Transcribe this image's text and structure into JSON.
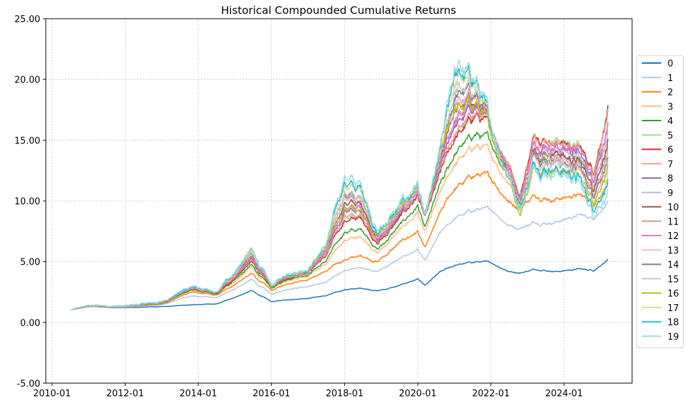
{
  "chart_data": {
    "type": "line",
    "title": "Historical Compounded Cumulative Returns",
    "xlabel": "",
    "ylabel": "",
    "xlim": [
      2009.83,
      2025.86
    ],
    "ylim": [
      -5,
      25
    ],
    "grid": true,
    "legend_placement": "right",
    "y_ticks": [
      -5,
      0,
      5,
      10,
      15,
      20,
      25
    ],
    "y_tick_labels": [
      "-5.00",
      "0.00",
      "5.00",
      "10.00",
      "15.00",
      "20.00",
      "25.00"
    ],
    "x_ticks": [
      2010.0,
      2012.0,
      2014.0,
      2016.0,
      2018.0,
      2020.0,
      2022.0,
      2024.0
    ],
    "x_tick_labels": [
      "2010-01",
      "2012-01",
      "2014-01",
      "2016-01",
      "2018-01",
      "2020-01",
      "2022-01",
      "2024-01"
    ],
    "x": [
      2010.5,
      2011.0,
      2012.0,
      2013.0,
      2013.8,
      2014.5,
      2015.45,
      2016.0,
      2016.5,
      2017.0,
      2017.5,
      2018.0,
      2018.5,
      2018.9,
      2019.5,
      2020.0,
      2020.2,
      2020.6,
      2021.0,
      2021.6,
      2022.0,
      2022.5,
      2022.8,
      2023.2,
      2023.8,
      2024.4,
      2024.8,
      2025.2
    ],
    "series": [
      {
        "name": "0",
        "color": "#1f77b4",
        "values": [
          1.0,
          1.3,
          1.2,
          1.3,
          1.45,
          1.5,
          2.6,
          1.7,
          1.9,
          2.0,
          2.2,
          2.7,
          2.8,
          2.6,
          3.0,
          3.6,
          3.0,
          4.1,
          4.7,
          5.0,
          4.9,
          4.2,
          4.1,
          4.4,
          4.2,
          4.4,
          4.3,
          5.2
        ]
      },
      {
        "name": "1",
        "color": "#aec7e8",
        "values": [
          1.0,
          1.3,
          1.25,
          1.45,
          2.2,
          2.0,
          3.5,
          2.3,
          2.8,
          3.0,
          3.3,
          4.3,
          4.5,
          4.2,
          5.2,
          6.0,
          5.0,
          7.2,
          8.5,
          9.3,
          9.3,
          8.0,
          7.8,
          8.2,
          8.3,
          8.8,
          8.6,
          10.0
        ]
      },
      {
        "name": "2",
        "color": "#ff7f0e",
        "values": [
          1.0,
          1.3,
          1.3,
          1.5,
          2.5,
          2.2,
          4.0,
          2.6,
          3.3,
          3.6,
          4.2,
          5.2,
          5.5,
          5.0,
          6.5,
          7.5,
          6.0,
          8.8,
          11.0,
          12.2,
          11.8,
          10.0,
          9.5,
          10.5,
          10.2,
          10.5,
          9.8,
          11.5
        ]
      },
      {
        "name": "3",
        "color": "#ffbb78",
        "values": [
          1.0,
          1.32,
          1.3,
          1.55,
          2.65,
          2.25,
          4.5,
          2.75,
          3.55,
          3.9,
          4.85,
          6.8,
          7.0,
          5.75,
          7.5,
          9.0,
          7.25,
          10.4,
          13.0,
          14.6,
          13.9,
          11.5,
          10.0,
          13.0,
          12.6,
          12.5,
          11.2,
          14.6
        ]
      },
      {
        "name": "4",
        "color": "#2ca02c",
        "values": [
          1.0,
          1.34,
          1.3,
          1.57,
          2.7,
          2.27,
          4.7,
          2.8,
          3.65,
          4.0,
          5.1,
          7.5,
          7.6,
          6.0,
          7.9,
          9.6,
          7.7,
          11.0,
          13.8,
          15.6,
          14.7,
          12.1,
          10.2,
          14.0,
          13.6,
          13.3,
          11.7,
          17.9
        ]
      },
      {
        "name": "5",
        "color": "#98df8a",
        "values": [
          1.0,
          1.35,
          1.3,
          1.6,
          2.8,
          2.3,
          4.9,
          2.9,
          3.8,
          4.2,
          5.6,
          8.7,
          8.6,
          6.6,
          8.6,
          10.6,
          8.6,
          12.1,
          15.5,
          17.2,
          16.2,
          13.1,
          10.6,
          15.6,
          15.1,
          14.6,
          12.6,
          17.5
        ]
      },
      {
        "name": "6",
        "color": "#d62728",
        "values": [
          1.0,
          1.35,
          1.3,
          1.6,
          2.8,
          2.3,
          5.0,
          2.9,
          3.8,
          4.2,
          5.5,
          8.5,
          8.5,
          6.5,
          8.5,
          10.5,
          8.5,
          12.0,
          15.0,
          17.0,
          16.0,
          13.0,
          10.5,
          15.5,
          15.0,
          14.5,
          12.5,
          17.8
        ]
      },
      {
        "name": "7",
        "color": "#ff9896",
        "values": [
          1.0,
          1.35,
          1.3,
          1.62,
          2.82,
          2.32,
          5.1,
          2.92,
          3.85,
          4.25,
          5.6,
          8.8,
          8.7,
          6.6,
          8.7,
          10.7,
          8.6,
          12.2,
          15.6,
          17.3,
          16.1,
          13.0,
          10.4,
          15.4,
          14.9,
          14.3,
          12.3,
          17.6
        ]
      },
      {
        "name": "8",
        "color": "#9467bd",
        "values": [
          1.0,
          1.36,
          1.31,
          1.62,
          2.84,
          2.32,
          5.2,
          2.92,
          3.88,
          4.26,
          5.7,
          9.2,
          9.0,
          6.7,
          8.7,
          10.7,
          8.5,
          12.3,
          16.2,
          17.6,
          16.0,
          12.8,
          10.3,
          15.0,
          14.5,
          13.9,
          11.8,
          16.4
        ]
      },
      {
        "name": "9",
        "color": "#c5b0d5",
        "values": [
          1.0,
          1.37,
          1.32,
          1.63,
          2.86,
          2.33,
          5.3,
          2.93,
          3.92,
          4.29,
          5.8,
          9.6,
          9.3,
          6.8,
          8.8,
          10.8,
          8.5,
          12.5,
          16.8,
          17.9,
          16.0,
          12.7,
          10.2,
          14.8,
          14.3,
          13.6,
          11.5,
          15.8
        ]
      },
      {
        "name": "10",
        "color": "#8c564b",
        "values": [
          1.0,
          1.37,
          1.32,
          1.64,
          2.88,
          2.34,
          5.4,
          2.94,
          3.96,
          4.32,
          5.9,
          9.9,
          9.5,
          6.9,
          8.9,
          10.9,
          8.5,
          12.6,
          17.4,
          18.2,
          16.0,
          12.6,
          10.1,
          14.5,
          14.0,
          13.3,
          11.1,
          15.1
        ]
      },
      {
        "name": "11",
        "color": "#c49c94",
        "values": [
          1.0,
          1.38,
          1.33,
          1.65,
          2.9,
          2.35,
          5.5,
          2.95,
          4.0,
          4.35,
          6.0,
          10.3,
          9.8,
          7.0,
          9.0,
          11.0,
          8.5,
          12.8,
          18.0,
          18.5,
          16.0,
          12.5,
          10.0,
          14.3,
          13.8,
          13.0,
          10.8,
          14.4
        ]
      },
      {
        "name": "12",
        "color": "#e377c2",
        "values": [
          1.0,
          1.37,
          1.32,
          1.64,
          2.87,
          2.33,
          5.3,
          2.93,
          3.9,
          4.3,
          5.8,
          9.5,
          9.3,
          6.8,
          8.8,
          10.8,
          8.5,
          12.5,
          16.5,
          17.8,
          16.0,
          12.8,
          10.3,
          15.0,
          14.6,
          14.2,
          12.0,
          16.5
        ]
      },
      {
        "name": "13",
        "color": "#f7b6d2",
        "values": [
          1.0,
          1.38,
          1.33,
          1.66,
          2.9,
          2.36,
          5.5,
          2.96,
          4.02,
          4.36,
          6.0,
          10.4,
          9.9,
          7.0,
          9.0,
          11.0,
          8.5,
          12.8,
          18.2,
          18.6,
          16.0,
          12.4,
          10.0,
          14.1,
          13.6,
          12.9,
          10.7,
          14.0
        ]
      },
      {
        "name": "14",
        "color": "#7f7f7f",
        "values": [
          1.0,
          1.38,
          1.33,
          1.66,
          2.92,
          2.36,
          5.6,
          2.96,
          4.04,
          4.38,
          6.1,
          10.6,
          10.0,
          7.1,
          9.1,
          11.1,
          8.5,
          12.9,
          18.6,
          18.8,
          16.0,
          12.4,
          9.9,
          14.0,
          13.5,
          12.7,
          10.5,
          13.6
        ]
      },
      {
        "name": "15",
        "color": "#c7c7c7",
        "values": [
          1.0,
          1.39,
          1.34,
          1.67,
          2.93,
          2.37,
          5.65,
          2.97,
          4.06,
          4.4,
          6.15,
          10.8,
          10.1,
          7.15,
          9.15,
          11.15,
          8.5,
          13.0,
          18.9,
          19.0,
          16.0,
          12.3,
          9.8,
          13.8,
          13.3,
          12.5,
          10.2,
          13.3
        ]
      },
      {
        "name": "16",
        "color": "#bcbd22",
        "values": [
          1.0,
          1.39,
          1.34,
          1.67,
          2.94,
          2.37,
          5.7,
          2.97,
          4.08,
          4.42,
          6.2,
          9.5,
          9.0,
          7.2,
          9.2,
          11.2,
          8.5,
          13.1,
          17.5,
          18.0,
          15.5,
          12.0,
          9.0,
          13.0,
          12.8,
          12.0,
          10.0,
          13.0
        ]
      },
      {
        "name": "17",
        "color": "#dbdb8d",
        "values": [
          1.0,
          1.39,
          1.34,
          1.68,
          2.96,
          2.38,
          5.8,
          2.98,
          4.12,
          4.44,
          6.3,
          11.3,
          10.5,
          7.3,
          9.3,
          11.3,
          8.5,
          13.2,
          19.8,
          19.4,
          16.0,
          12.2,
          9.7,
          13.3,
          12.8,
          12.1,
          9.7,
          12.4
        ]
      },
      {
        "name": "18",
        "color": "#17becf",
        "values": [
          1.0,
          1.4,
          1.35,
          1.69,
          2.98,
          2.39,
          5.9,
          2.99,
          4.16,
          4.47,
          6.4,
          11.6,
          10.8,
          7.4,
          9.4,
          11.4,
          8.5,
          13.4,
          20.4,
          19.7,
          16.0,
          12.1,
          9.6,
          13.2,
          12.7,
          11.8,
          9.4,
          11.8
        ]
      },
      {
        "name": "19",
        "color": "#9edae5",
        "values": [
          1.0,
          1.4,
          1.35,
          1.7,
          3.0,
          2.4,
          6.0,
          3.0,
          4.2,
          4.5,
          6.5,
          12.0,
          11.0,
          7.5,
          9.5,
          11.5,
          8.5,
          13.5,
          21.0,
          20.0,
          16.0,
          12.0,
          9.5,
          13.0,
          12.5,
          11.5,
          9.0,
          11.0
        ]
      }
    ]
  }
}
